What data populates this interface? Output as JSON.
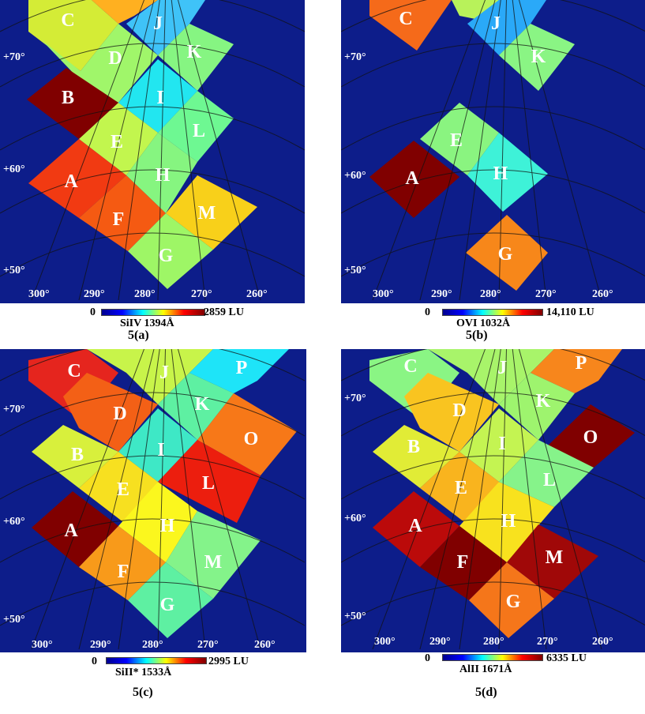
{
  "colors": {
    "background": "#0d1d8a",
    "colormap": [
      "#00008f",
      "#0000ff",
      "#00ffff",
      "#ffff00",
      "#ff0000",
      "#800000"
    ]
  },
  "panels": [
    {
      "caption": "5(a)",
      "line": "SiIV 1394Å",
      "cb_min": "0",
      "cb_max": "2859 LU",
      "lat_labels": [
        "+70°",
        "+60°",
        "+50°"
      ],
      "lon_labels": [
        "300°",
        "290°",
        "280°",
        "270°",
        "260°"
      ],
      "regions": [
        {
          "id": "C",
          "color": "#d4ec36"
        },
        {
          "id": "J",
          "color": "#3fc3f8"
        },
        {
          "id": "D",
          "color": "#a0f66a"
        },
        {
          "id": "K",
          "color": "#86f582"
        },
        {
          "id": "B",
          "color": "#800000"
        },
        {
          "id": "I",
          "color": "#22e6f0"
        },
        {
          "id": "E",
          "color": "#c2f64e"
        },
        {
          "id": "L",
          "color": "#6ef892"
        },
        {
          "id": "A",
          "color": "#f13a12"
        },
        {
          "id": "H",
          "color": "#86f580"
        },
        {
          "id": "F",
          "color": "#f55a12"
        },
        {
          "id": "M",
          "color": "#f8d01a"
        },
        {
          "id": "G",
          "color": "#9ef666"
        },
        {
          "id": "extra",
          "color": "#ffb020"
        }
      ]
    },
    {
      "caption": "5(b)",
      "line": "OVI 1032Å",
      "cb_min": "0",
      "cb_max": "14,110 LU",
      "lat_labels": [
        "+70°",
        "+60°",
        "+50°"
      ],
      "lon_labels": [
        "300°",
        "290°",
        "280°",
        "270°",
        "260°"
      ],
      "regions": [
        {
          "id": "C",
          "color": "#f56a1a"
        },
        {
          "id": "J",
          "color": "#2aa9f8"
        },
        {
          "id": "K",
          "color": "#8af584"
        },
        {
          "id": "E",
          "color": "#8af480"
        },
        {
          "id": "A",
          "color": "#800000"
        },
        {
          "id": "H",
          "color": "#3ef2d8"
        },
        {
          "id": "G",
          "color": "#f7871a"
        },
        {
          "id": "extra",
          "color": "#b8f25a"
        }
      ]
    },
    {
      "caption": "5(c)",
      "line": "SiII* 1533Å",
      "cb_min": "0",
      "cb_max": "2995 LU",
      "lat_labels": [
        "+70°",
        "+60°",
        "+50°"
      ],
      "lon_labels": [
        "300°",
        "290°",
        "280°",
        "270°",
        "260°"
      ],
      "regions": [
        {
          "id": "C",
          "color": "#e5251e"
        },
        {
          "id": "J",
          "color": "#c8f44a"
        },
        {
          "id": "P",
          "color": "#1ee4f8"
        },
        {
          "id": "D",
          "color": "#f36016"
        },
        {
          "id": "K",
          "color": "#5ef0a2"
        },
        {
          "id": "B",
          "color": "#d8f03c"
        },
        {
          "id": "I",
          "color": "#3ee8c6"
        },
        {
          "id": "O",
          "color": "#f77818"
        },
        {
          "id": "E",
          "color": "#f7e020"
        },
        {
          "id": "L",
          "color": "#ec1e0e"
        },
        {
          "id": "A",
          "color": "#800000"
        },
        {
          "id": "H",
          "color": "#fbf71e"
        },
        {
          "id": "F",
          "color": "#f89a1a"
        },
        {
          "id": "M",
          "color": "#84f38a"
        },
        {
          "id": "G",
          "color": "#5ef0a2"
        }
      ]
    },
    {
      "caption": "5(d)",
      "line": "AlII 1671Å",
      "cb_min": "0",
      "cb_max": "6335 LU",
      "lat_labels": [
        "+70°",
        "+60°",
        "+50°"
      ],
      "lon_labels": [
        "300°",
        "290°",
        "280°",
        "270°",
        "260°"
      ],
      "regions": [
        {
          "id": "C",
          "color": "#8af584"
        },
        {
          "id": "J",
          "color": "#a8f46a"
        },
        {
          "id": "P",
          "color": "#f7861c"
        },
        {
          "id": "D",
          "color": "#f9c420"
        },
        {
          "id": "K",
          "color": "#9ef46e"
        },
        {
          "id": "B",
          "color": "#e1ec36"
        },
        {
          "id": "I",
          "color": "#c4f452"
        },
        {
          "id": "O",
          "color": "#800000"
        },
        {
          "id": "E",
          "color": "#f9b41e"
        },
        {
          "id": "L",
          "color": "#86f38a"
        },
        {
          "id": "A",
          "color": "#bb0a0a"
        },
        {
          "id": "H",
          "color": "#f8e21e"
        },
        {
          "id": "F",
          "color": "#800000"
        },
        {
          "id": "M",
          "color": "#a00808"
        },
        {
          "id": "G",
          "color": "#f5761a"
        }
      ]
    }
  ]
}
